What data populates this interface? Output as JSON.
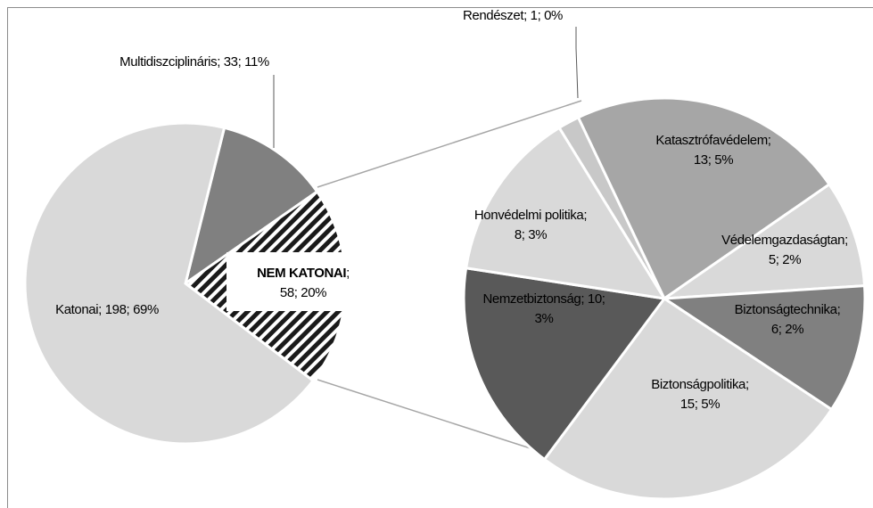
{
  "chart_data": {
    "type": "pie-of-pie",
    "series": [
      {
        "values": [
          198,
          33,
          58
        ],
        "colors": [
          "#d9d9d9",
          "#808080",
          "hatch"
        ],
        "value_labels": [
          [
            [
              "Katonai; 198; 69%"
            ]
          ],
          [
            [
              "Multidiszciplináris; 33; 11%"
            ]
          ],
          [
            [
              "NEM KATONAI",
              ";"
            ],
            [
              "58; 20%"
            ]
          ]
        ]
      },
      {
        "values": [
          1,
          13,
          5,
          6,
          15,
          10,
          8
        ],
        "colors": [
          "#c8c8c8",
          "#a6a6a6",
          "#d9d9d9",
          "#808080",
          "#d9d9d9",
          "#595959",
          "#d9d9d9"
        ],
        "value_labels": [
          [
            [
              "Rendészet; 1; 0%"
            ]
          ],
          [
            [
              "Katasztrófavédelem;"
            ],
            [
              "13; 5%"
            ]
          ],
          [
            [
              "Védelemgazdaságtan;"
            ],
            [
              "5; 2%"
            ]
          ],
          [
            [
              "Biztonságtechnika;"
            ],
            [
              "6; 2%"
            ]
          ],
          [
            [
              "Biztonságpolitika;"
            ],
            [
              "15; 5%"
            ]
          ],
          [
            [
              "Nemzetbiztonság; 10;"
            ],
            [
              "3%"
            ]
          ],
          [
            [
              "Honvédelmi politika;"
            ],
            [
              "8; 3%"
            ]
          ]
        ]
      }
    ]
  }
}
